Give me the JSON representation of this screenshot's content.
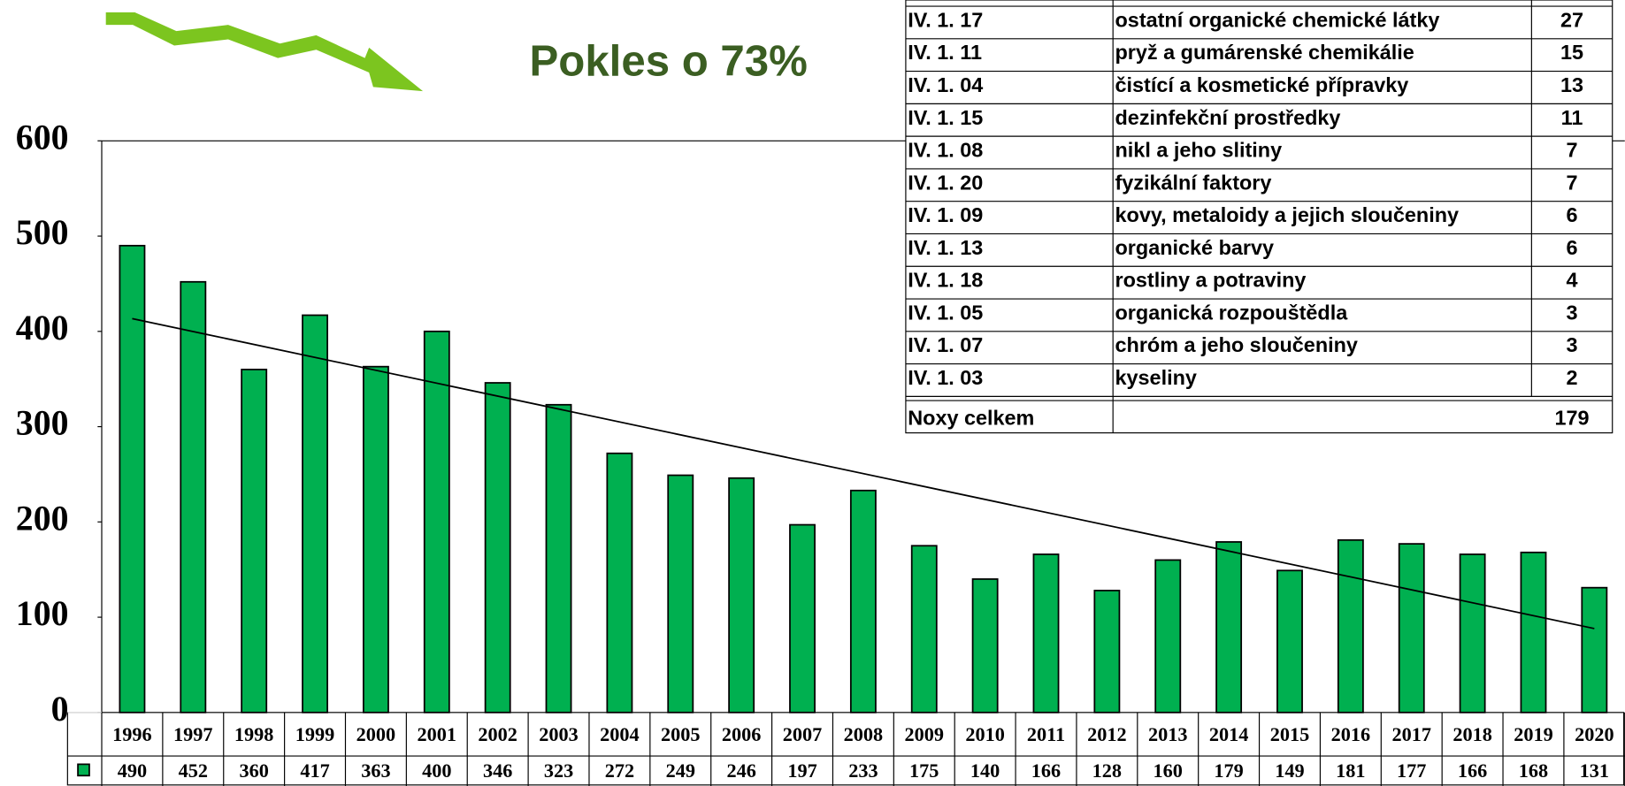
{
  "chart_data": {
    "type": "bar",
    "annotation": "Pokles o 73%",
    "categories": [
      "1996",
      "1997",
      "1998",
      "1999",
      "2000",
      "2001",
      "2002",
      "2003",
      "2004",
      "2005",
      "2006",
      "2007",
      "2008",
      "2009",
      "2010",
      "2011",
      "2012",
      "2013",
      "2014",
      "2015",
      "2016",
      "2017",
      "2018",
      "2019",
      "2020"
    ],
    "values": [
      490,
      452,
      360,
      417,
      363,
      400,
      346,
      323,
      272,
      249,
      246,
      197,
      233,
      175,
      140,
      166,
      128,
      160,
      179,
      149,
      181,
      177,
      166,
      168,
      131
    ],
    "color": "#00b050",
    "ylim": [
      0,
      600
    ],
    "yticks": [
      0,
      100,
      200,
      300,
      400,
      500,
      600
    ],
    "trendline": true
  },
  "table": {
    "rows": [
      [
        "IV. 1. 17",
        "ostatní organické chemické látky",
        27
      ],
      [
        "IV. 1. 11",
        "pryž a gumárenské chemikálie",
        15
      ],
      [
        "IV. 1. 04",
        "čistící a kosmetické přípravky",
        13
      ],
      [
        "IV. 1. 15",
        "dezinfekční prostředky",
        11
      ],
      [
        "IV. 1. 08",
        "nikl a jeho slitiny",
        7
      ],
      [
        "IV. 1. 20",
        "fyzikální faktory",
        7
      ],
      [
        "IV. 1. 09",
        "kovy, metaloidy a jejich sloučeniny",
        6
      ],
      [
        "IV. 1. 13",
        "organické barvy",
        6
      ],
      [
        "IV. 1. 18",
        "rostliny a potraviny",
        4
      ],
      [
        "IV. 1. 05",
        "organická rozpouštědla",
        3
      ],
      [
        "IV. 1. 07",
        "chróm a jeho sloučeniny",
        3
      ],
      [
        "IV. 1. 03",
        "kyseliny",
        2
      ]
    ],
    "total": {
      "label": "Noxy celkem",
      "value": 179
    }
  }
}
